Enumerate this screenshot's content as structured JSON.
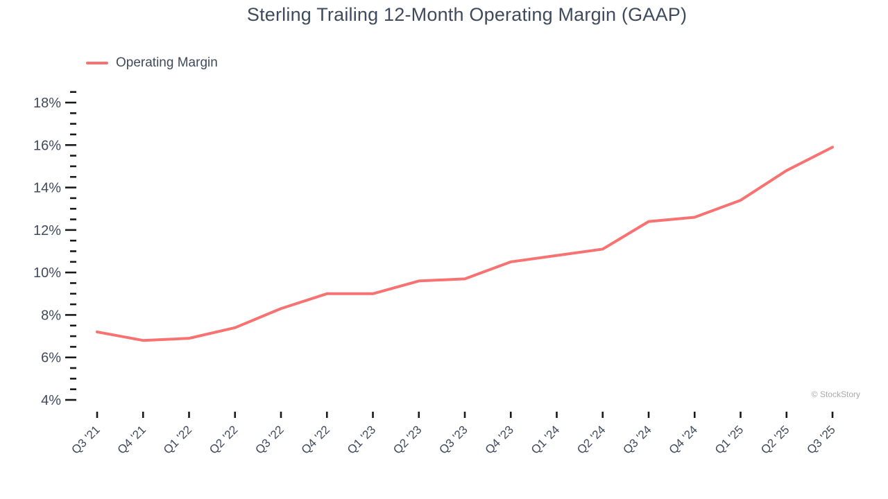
{
  "title": "Sterling Trailing 12-Month Operating Margin (GAAP)",
  "legend": {
    "label": "Operating Margin"
  },
  "watermark": "© StockStory",
  "colors": {
    "line": "#F87272",
    "text": "#3F4A5C",
    "tick": "#17191E",
    "watermark": "#A9A9A9"
  },
  "chart_data": {
    "type": "line",
    "title": "Sterling Trailing 12-Month Operating Margin (GAAP)",
    "categories": [
      "Q3 '21",
      "Q4 '21",
      "Q1 '22",
      "Q2 '22",
      "Q3 '22",
      "Q4 '22",
      "Q1 '23",
      "Q2 '23",
      "Q3 '23",
      "Q4 '23",
      "Q1 '24",
      "Q2 '24",
      "Q3 '24",
      "Q4 '24",
      "Q1 '25",
      "Q2 '25",
      "Q3 '25"
    ],
    "series": [
      {
        "name": "Operating Margin",
        "values": [
          7.2,
          6.8,
          6.9,
          7.4,
          8.3,
          9.0,
          9.0,
          9.6,
          9.7,
          10.5,
          10.8,
          11.1,
          12.4,
          12.6,
          13.4,
          14.8,
          15.9
        ]
      }
    ],
    "xlabel": "",
    "ylabel": "",
    "ylim": [
      4,
      18.5
    ],
    "y_major_step": 2,
    "y_minor_step": 0.5,
    "y_tick_suffix": "%",
    "grid": false,
    "legend_position": "top-left"
  }
}
